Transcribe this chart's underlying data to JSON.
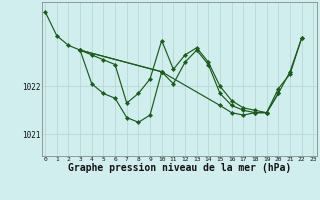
{
  "background_color": "#d0eeed",
  "grid_color": "#b8d8d6",
  "line_color": "#1a5c1a",
  "marker_color": "#1a5c1a",
  "xlabel": "Graphe pression niveau de la mer (hPa)",
  "xlabel_fontsize": 7.0,
  "xlim_min": -0.3,
  "xlim_max": 23.3,
  "ylim_min": 1020.55,
  "ylim_max": 1023.75,
  "yticks": [
    1021,
    1022
  ],
  "xticks": [
    0,
    1,
    2,
    3,
    4,
    5,
    6,
    7,
    8,
    9,
    10,
    11,
    12,
    13,
    14,
    15,
    16,
    17,
    18,
    19,
    20,
    21,
    22,
    23
  ],
  "series": [
    {
      "x": [
        0,
        1,
        2,
        3,
        4,
        5,
        6,
        7,
        8,
        9,
        10,
        11,
        12,
        13,
        14,
        15,
        16,
        17,
        18,
        19,
        20,
        21,
        22
      ],
      "y": [
        1023.55,
        1023.05,
        1022.85,
        1022.75,
        1022.65,
        1022.55,
        1022.45,
        1021.65,
        1021.85,
        1022.15,
        1022.95,
        1022.35,
        1022.65,
        1022.8,
        1022.5,
        1022.0,
        1021.7,
        1021.55,
        1021.5,
        1021.45,
        1021.95,
        1022.25,
        1023.0
      ]
    },
    {
      "x": [
        3,
        4,
        5,
        6,
        7,
        8,
        9,
        10
      ],
      "y": [
        1022.75,
        1022.05,
        1021.85,
        1021.75,
        1021.35,
        1021.25,
        1021.4,
        1022.3
      ]
    },
    {
      "x": [
        3,
        10,
        11,
        12,
        13,
        14,
        15,
        16,
        17,
        18,
        19,
        20,
        21,
        22
      ],
      "y": [
        1022.75,
        1022.3,
        1022.05,
        1022.5,
        1022.75,
        1022.45,
        1021.85,
        1021.6,
        1021.5,
        1021.45,
        1021.45,
        1021.85,
        1022.3,
        1023.0
      ]
    },
    {
      "x": [
        3,
        10,
        15,
        16,
        17,
        18,
        19,
        20
      ],
      "y": [
        1022.75,
        1022.3,
        1021.6,
        1021.45,
        1021.4,
        1021.45,
        1021.45,
        1021.85
      ]
    }
  ]
}
